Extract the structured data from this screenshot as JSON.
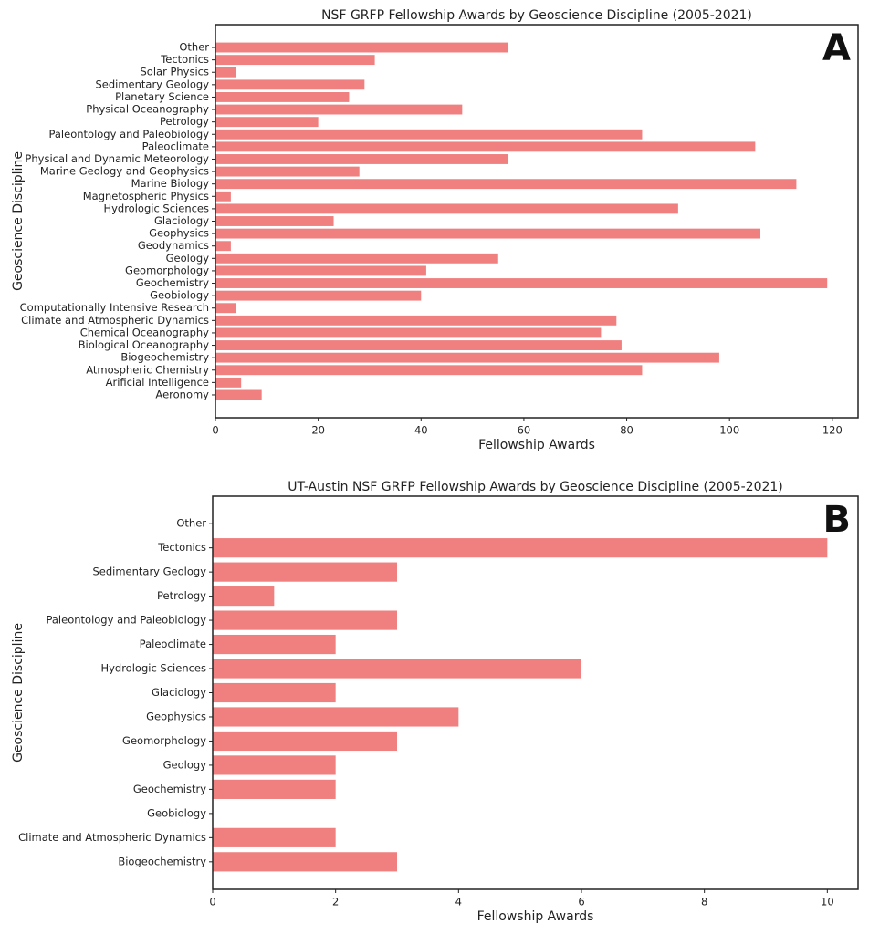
{
  "chart_data": [
    {
      "type": "barh",
      "title": "NSF GRFP Fellowship Awards by Geoscience Discipline (2005-2021)",
      "panel_label": "A",
      "xlabel": "Fellowship Awards",
      "ylabel": "Geoscience Discipline",
      "categories": [
        "Aeronomy",
        "Arificial Intelligence",
        "Atmospheric Chemistry",
        "Biogeochemistry",
        "Biological Oceanography",
        "Chemical Oceanography",
        "Climate and Atmospheric Dynamics",
        "Computationally Intensive Research",
        "Geobiology",
        "Geochemistry",
        "Geomorphology",
        "Geology",
        "Geodynamics",
        "Geophysics",
        "Glaciology",
        "Hydrologic Sciences",
        "Magnetospheric Physics",
        "Marine Biology",
        "Marine Geology and Geophysics",
        "Physical and Dynamic Meteorology",
        "Paleoclimate",
        "Paleontology and Paleobiology",
        "Petrology",
        "Physical Oceanography",
        "Planetary Science",
        "Sedimentary Geology",
        "Solar Physics",
        "Tectonics",
        "Other"
      ],
      "values": [
        9,
        5,
        83,
        98,
        79,
        75,
        78,
        4,
        40,
        119,
        41,
        55,
        3,
        106,
        23,
        90,
        3,
        113,
        28,
        57,
        105,
        83,
        20,
        48,
        26,
        29,
        4,
        31,
        57
      ],
      "color": "#f08080",
      "xlim": [
        0,
        125
      ],
      "xticks": [
        0,
        20,
        40,
        60,
        80,
        100,
        120
      ]
    },
    {
      "type": "barh",
      "title": "UT-Austin NSF GRFP Fellowship Awards by Geoscience Discipline (2005-2021)",
      "panel_label": "B",
      "xlabel": "Fellowship Awards",
      "ylabel": "Geoscience Discipline",
      "categories": [
        "Biogeochemistry",
        "Climate and Atmospheric Dynamics",
        "Geobiology",
        "Geochemistry",
        "Geology",
        "Geomorphology",
        "Geophysics",
        "Glaciology",
        "Hydrologic Sciences",
        "Paleoclimate",
        "Paleontology and Paleobiology",
        "Petrology",
        "Sedimentary Geology",
        "Tectonics",
        "Other"
      ],
      "values": [
        3,
        2,
        0,
        2,
        2,
        3,
        4,
        2,
        6,
        2,
        3,
        1,
        3,
        10,
        0
      ],
      "color": "#f08080",
      "xlim": [
        0,
        10.5
      ],
      "xticks": [
        0,
        2,
        4,
        6,
        8,
        10
      ]
    }
  ]
}
